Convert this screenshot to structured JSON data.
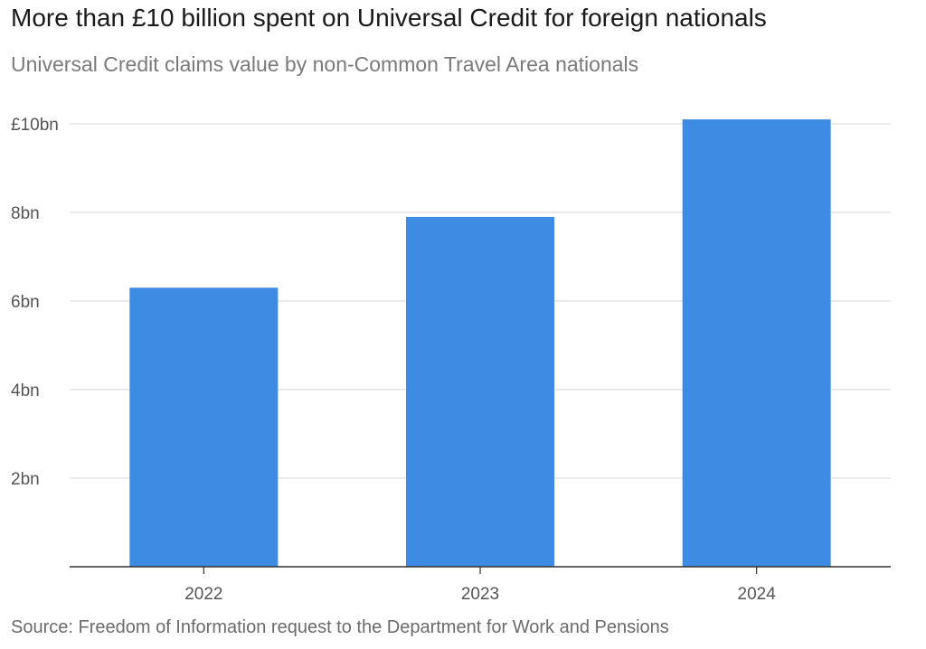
{
  "title": "More than £10 billion spent on Universal Credit for foreign nationals",
  "subtitle": "Universal Credit claims value by non-Common Travel Area nationals",
  "source": "Source: Freedom of Information request to the Department for Work and Pensions",
  "colors": {
    "bar": "#3d8be2",
    "grid": "#dedede",
    "axis": "#333333"
  },
  "chart_data": {
    "type": "bar",
    "categories": [
      "2022",
      "2023",
      "2024"
    ],
    "values": [
      6.3,
      7.9,
      10.1
    ],
    "unit": "bn",
    "yticks": [
      2,
      4,
      6,
      8,
      10
    ],
    "ytick_labels": [
      "2bn",
      "4bn",
      "6bn",
      "8bn",
      "£10bn"
    ],
    "ylim": [
      0,
      10
    ],
    "title": "More than £10 billion spent on Universal Credit for foreign nationals",
    "subtitle": "Universal Credit claims value by non-Common Travel Area nationals",
    "xlabel": "",
    "ylabel": "",
    "grid": true,
    "legend": "none"
  }
}
